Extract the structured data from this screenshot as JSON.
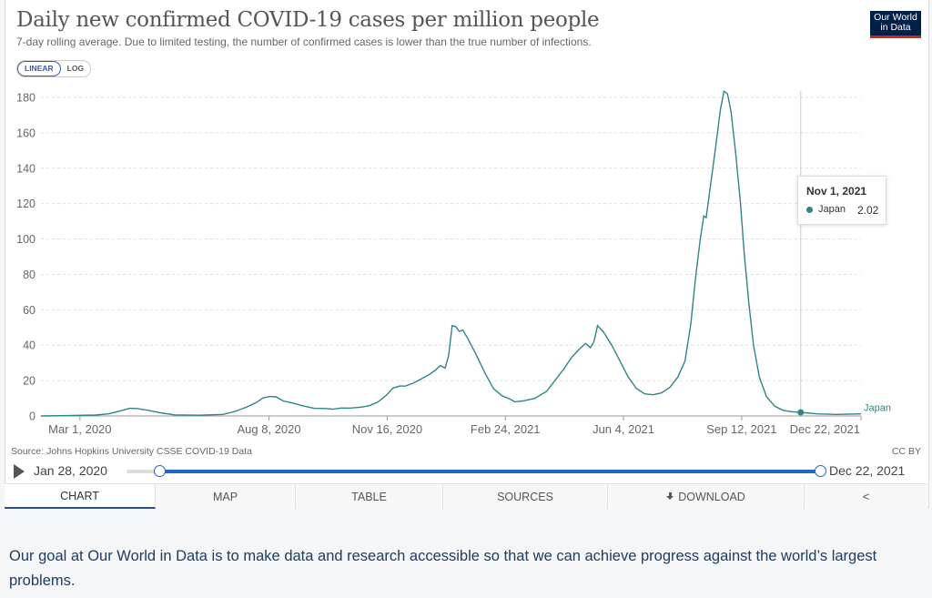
{
  "header": {
    "title": "Daily new confirmed COVID-19 cases per million people",
    "subtitle": "7-day rolling average. Due to limited testing, the number of confirmed cases is lower than the true number of infections.",
    "logo_line1": "Our World",
    "logo_line2": "in Data"
  },
  "scale_toggle": {
    "linear": "LINEAR",
    "log": "LOG",
    "selected": "LINEAR"
  },
  "chart_data": {
    "type": "line",
    "title": "Daily new confirmed COVID-19 cases per million people",
    "ylim": [
      0,
      180
    ],
    "yticks": [
      "0",
      "20",
      "40",
      "60",
      "80",
      "100",
      "120",
      "140",
      "160",
      "180"
    ],
    "xlim": [
      "2020-01-28",
      "2021-12-22"
    ],
    "xtick_labels": [
      "Mar 1, 2020",
      "Aug 8, 2020",
      "Nov 16, 2020",
      "Feb 24, 2021",
      "Jun 4, 2021",
      "Sep 12, 2021",
      "Dec 22, 2021"
    ],
    "grid": true,
    "series": [
      {
        "name": "Japan",
        "color": "#2d8587",
        "points": [
          [
            "2020-01-28",
            0
          ],
          [
            "2020-02-20",
            0.2
          ],
          [
            "2020-03-14",
            0.5
          ],
          [
            "2020-03-25",
            1.2
          ],
          [
            "2020-04-05",
            3
          ],
          [
            "2020-04-12",
            4.3
          ],
          [
            "2020-04-18",
            4.2
          ],
          [
            "2020-04-28",
            3.2
          ],
          [
            "2020-05-08",
            1.8
          ],
          [
            "2020-05-20",
            0.6
          ],
          [
            "2020-06-10",
            0.4
          ],
          [
            "2020-06-30",
            0.9
          ],
          [
            "2020-07-10",
            2.5
          ],
          [
            "2020-07-20",
            5
          ],
          [
            "2020-07-28",
            7.5
          ],
          [
            "2020-08-03",
            10.2
          ],
          [
            "2020-08-09",
            11
          ],
          [
            "2020-08-14",
            10.8
          ],
          [
            "2020-08-20",
            8.5
          ],
          [
            "2020-08-27",
            7.5
          ],
          [
            "2020-09-05",
            5.8
          ],
          [
            "2020-09-15",
            4.3
          ],
          [
            "2020-09-25",
            4.2
          ],
          [
            "2020-10-01",
            3.8
          ],
          [
            "2020-10-08",
            4.5
          ],
          [
            "2020-10-15",
            4.4
          ],
          [
            "2020-10-25",
            5
          ],
          [
            "2020-11-01",
            5.8
          ],
          [
            "2020-11-08",
            7.8
          ],
          [
            "2020-11-15",
            11.5
          ],
          [
            "2020-11-21",
            15.8
          ],
          [
            "2020-11-27",
            17
          ],
          [
            "2020-12-01",
            16.8
          ],
          [
            "2020-12-08",
            18.5
          ],
          [
            "2020-12-15",
            21
          ],
          [
            "2020-12-22",
            23.5
          ],
          [
            "2020-12-27",
            26
          ],
          [
            "2020-12-31",
            28.5
          ],
          [
            "2021-01-04",
            27
          ],
          [
            "2021-01-07",
            34
          ],
          [
            "2021-01-10",
            51
          ],
          [
            "2021-01-13",
            50.5
          ],
          [
            "2021-01-16",
            47.8
          ],
          [
            "2021-01-19",
            48.5
          ],
          [
            "2021-01-23",
            44
          ],
          [
            "2021-01-30",
            35
          ],
          [
            "2021-02-07",
            24
          ],
          [
            "2021-02-14",
            15.5
          ],
          [
            "2021-02-21",
            11.5
          ],
          [
            "2021-02-28",
            9.5
          ],
          [
            "2021-03-04",
            8
          ],
          [
            "2021-03-11",
            8.5
          ],
          [
            "2021-03-21",
            10
          ],
          [
            "2021-03-31",
            14
          ],
          [
            "2021-04-07",
            20
          ],
          [
            "2021-04-14",
            26
          ],
          [
            "2021-04-21",
            33
          ],
          [
            "2021-04-28",
            38
          ],
          [
            "2021-05-03",
            41
          ],
          [
            "2021-05-07",
            38.5
          ],
          [
            "2021-05-10",
            42
          ],
          [
            "2021-05-13",
            51
          ],
          [
            "2021-05-18",
            47.5
          ],
          [
            "2021-05-25",
            40
          ],
          [
            "2021-06-01",
            31
          ],
          [
            "2021-06-08",
            22
          ],
          [
            "2021-06-15",
            15.5
          ],
          [
            "2021-06-22",
            12.5
          ],
          [
            "2021-06-29",
            12
          ],
          [
            "2021-07-06",
            13
          ],
          [
            "2021-07-13",
            16
          ],
          [
            "2021-07-20",
            22
          ],
          [
            "2021-07-26",
            31
          ],
          [
            "2021-07-31",
            52
          ],
          [
            "2021-08-04",
            78
          ],
          [
            "2021-08-08",
            100
          ],
          [
            "2021-08-11",
            113
          ],
          [
            "2021-08-13",
            112
          ],
          [
            "2021-08-17",
            132
          ],
          [
            "2021-08-21",
            152
          ],
          [
            "2021-08-25",
            173
          ],
          [
            "2021-08-28",
            183.5
          ],
          [
            "2021-08-31",
            182
          ],
          [
            "2021-09-03",
            172
          ],
          [
            "2021-09-07",
            148
          ],
          [
            "2021-09-11",
            120
          ],
          [
            "2021-09-14",
            93
          ],
          [
            "2021-09-18",
            64
          ],
          [
            "2021-09-22",
            40
          ],
          [
            "2021-09-27",
            22
          ],
          [
            "2021-10-03",
            11
          ],
          [
            "2021-10-10",
            5.5
          ],
          [
            "2021-10-17",
            3.2
          ],
          [
            "2021-10-24",
            2.4
          ],
          [
            "2021-11-01",
            2.02
          ],
          [
            "2021-11-15",
            1.2
          ],
          [
            "2021-12-01",
            0.9
          ],
          [
            "2021-12-22",
            1.2
          ]
        ]
      }
    ],
    "series_label": "Japan",
    "hover": {
      "date": "Nov 1, 2021",
      "series": "Japan",
      "value": "2.02",
      "x": "2021-11-01",
      "y": 2.02
    }
  },
  "footer": {
    "source": "Source: Johns Hopkins University CSSE COVID-19 Data",
    "license": "CC BY"
  },
  "timeline": {
    "start": "Jan 28, 2020",
    "end": "Dec 22, 2021"
  },
  "tabs": [
    {
      "label": "CHART",
      "active": true
    },
    {
      "label": "MAP"
    },
    {
      "label": "TABLE"
    },
    {
      "label": "SOURCES"
    },
    {
      "label": "DOWNLOAD",
      "icon": "download-icon"
    },
    {
      "label": "",
      "icon": "share-icon"
    }
  ],
  "mission_text": "Our goal at Our World in Data is to make data and research accessible so that we can achieve progress against the world’s largest problems."
}
